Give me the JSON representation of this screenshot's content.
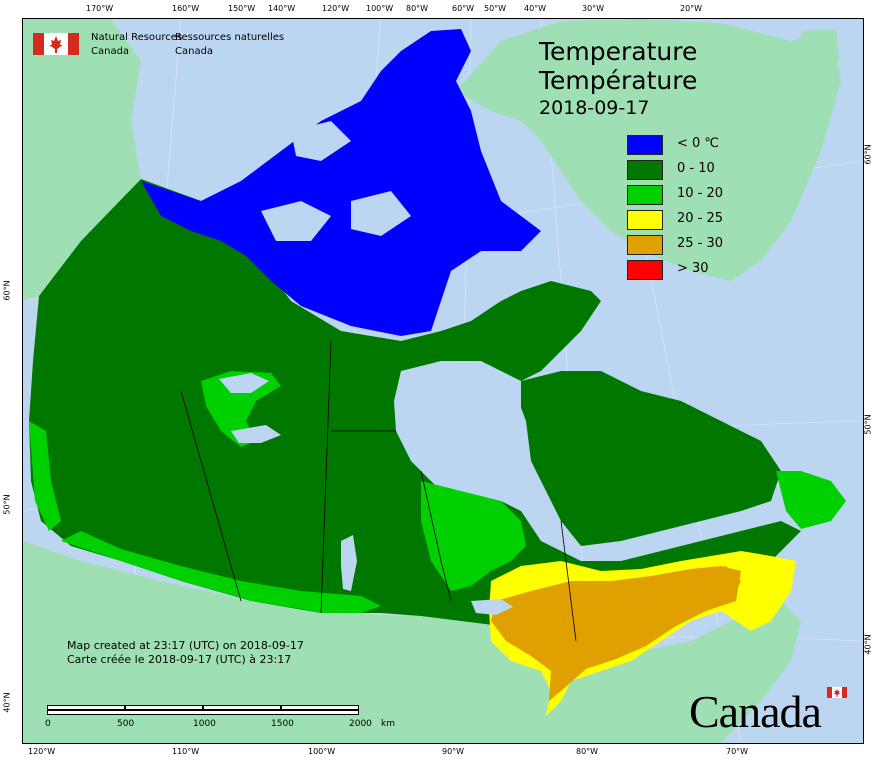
{
  "agency": {
    "name_en_line1": "Natural Resources",
    "name_en_line2": "Canada",
    "name_fr_line1": "Ressources naturelles",
    "name_fr_line2": "Canada"
  },
  "title": {
    "en": "Temperature",
    "fr": "Température",
    "date": "2018-09-17"
  },
  "legend": [
    {
      "label": "< 0 ℃",
      "color": "#0000ff"
    },
    {
      "label": "0 - 10",
      "color": "#007800"
    },
    {
      "label": "10 - 20",
      "color": "#00d000"
    },
    {
      "label": "20 - 25",
      "color": "#ffff00"
    },
    {
      "label": "25 - 30",
      "color": "#e0a000"
    },
    {
      "label": "> 30",
      "color": "#ff0000"
    }
  ],
  "top_ticks": [
    "170°W",
    "160°W",
    "150°W",
    "140°W",
    "120°W",
    "100°W",
    "80°W",
    "60°W",
    "50°W",
    "40°W",
    "30°W",
    "20°W"
  ],
  "bottom_ticks": [
    "120°W",
    "110°W",
    "100°W",
    "90°W",
    "80°W",
    "70°W"
  ],
  "left_ticks": [
    "60°N",
    "50°N",
    "40°N"
  ],
  "right_ticks": [
    "60°N",
    "50°N",
    "40°N"
  ],
  "created": {
    "en": "Map created at 23:17 (UTC) on 2018-09-17",
    "fr": "Carte créée le 2018-09-17 (UTC) à 23:17"
  },
  "scale": {
    "labels": [
      "0",
      "500",
      "1000",
      "1500",
      "2000"
    ],
    "unit": "km"
  },
  "wordmark": "Canada",
  "colors": {
    "ocean": "#bcd6f2",
    "foreign_land": "#9ee0b4",
    "greenland": "#9ee0b4"
  }
}
